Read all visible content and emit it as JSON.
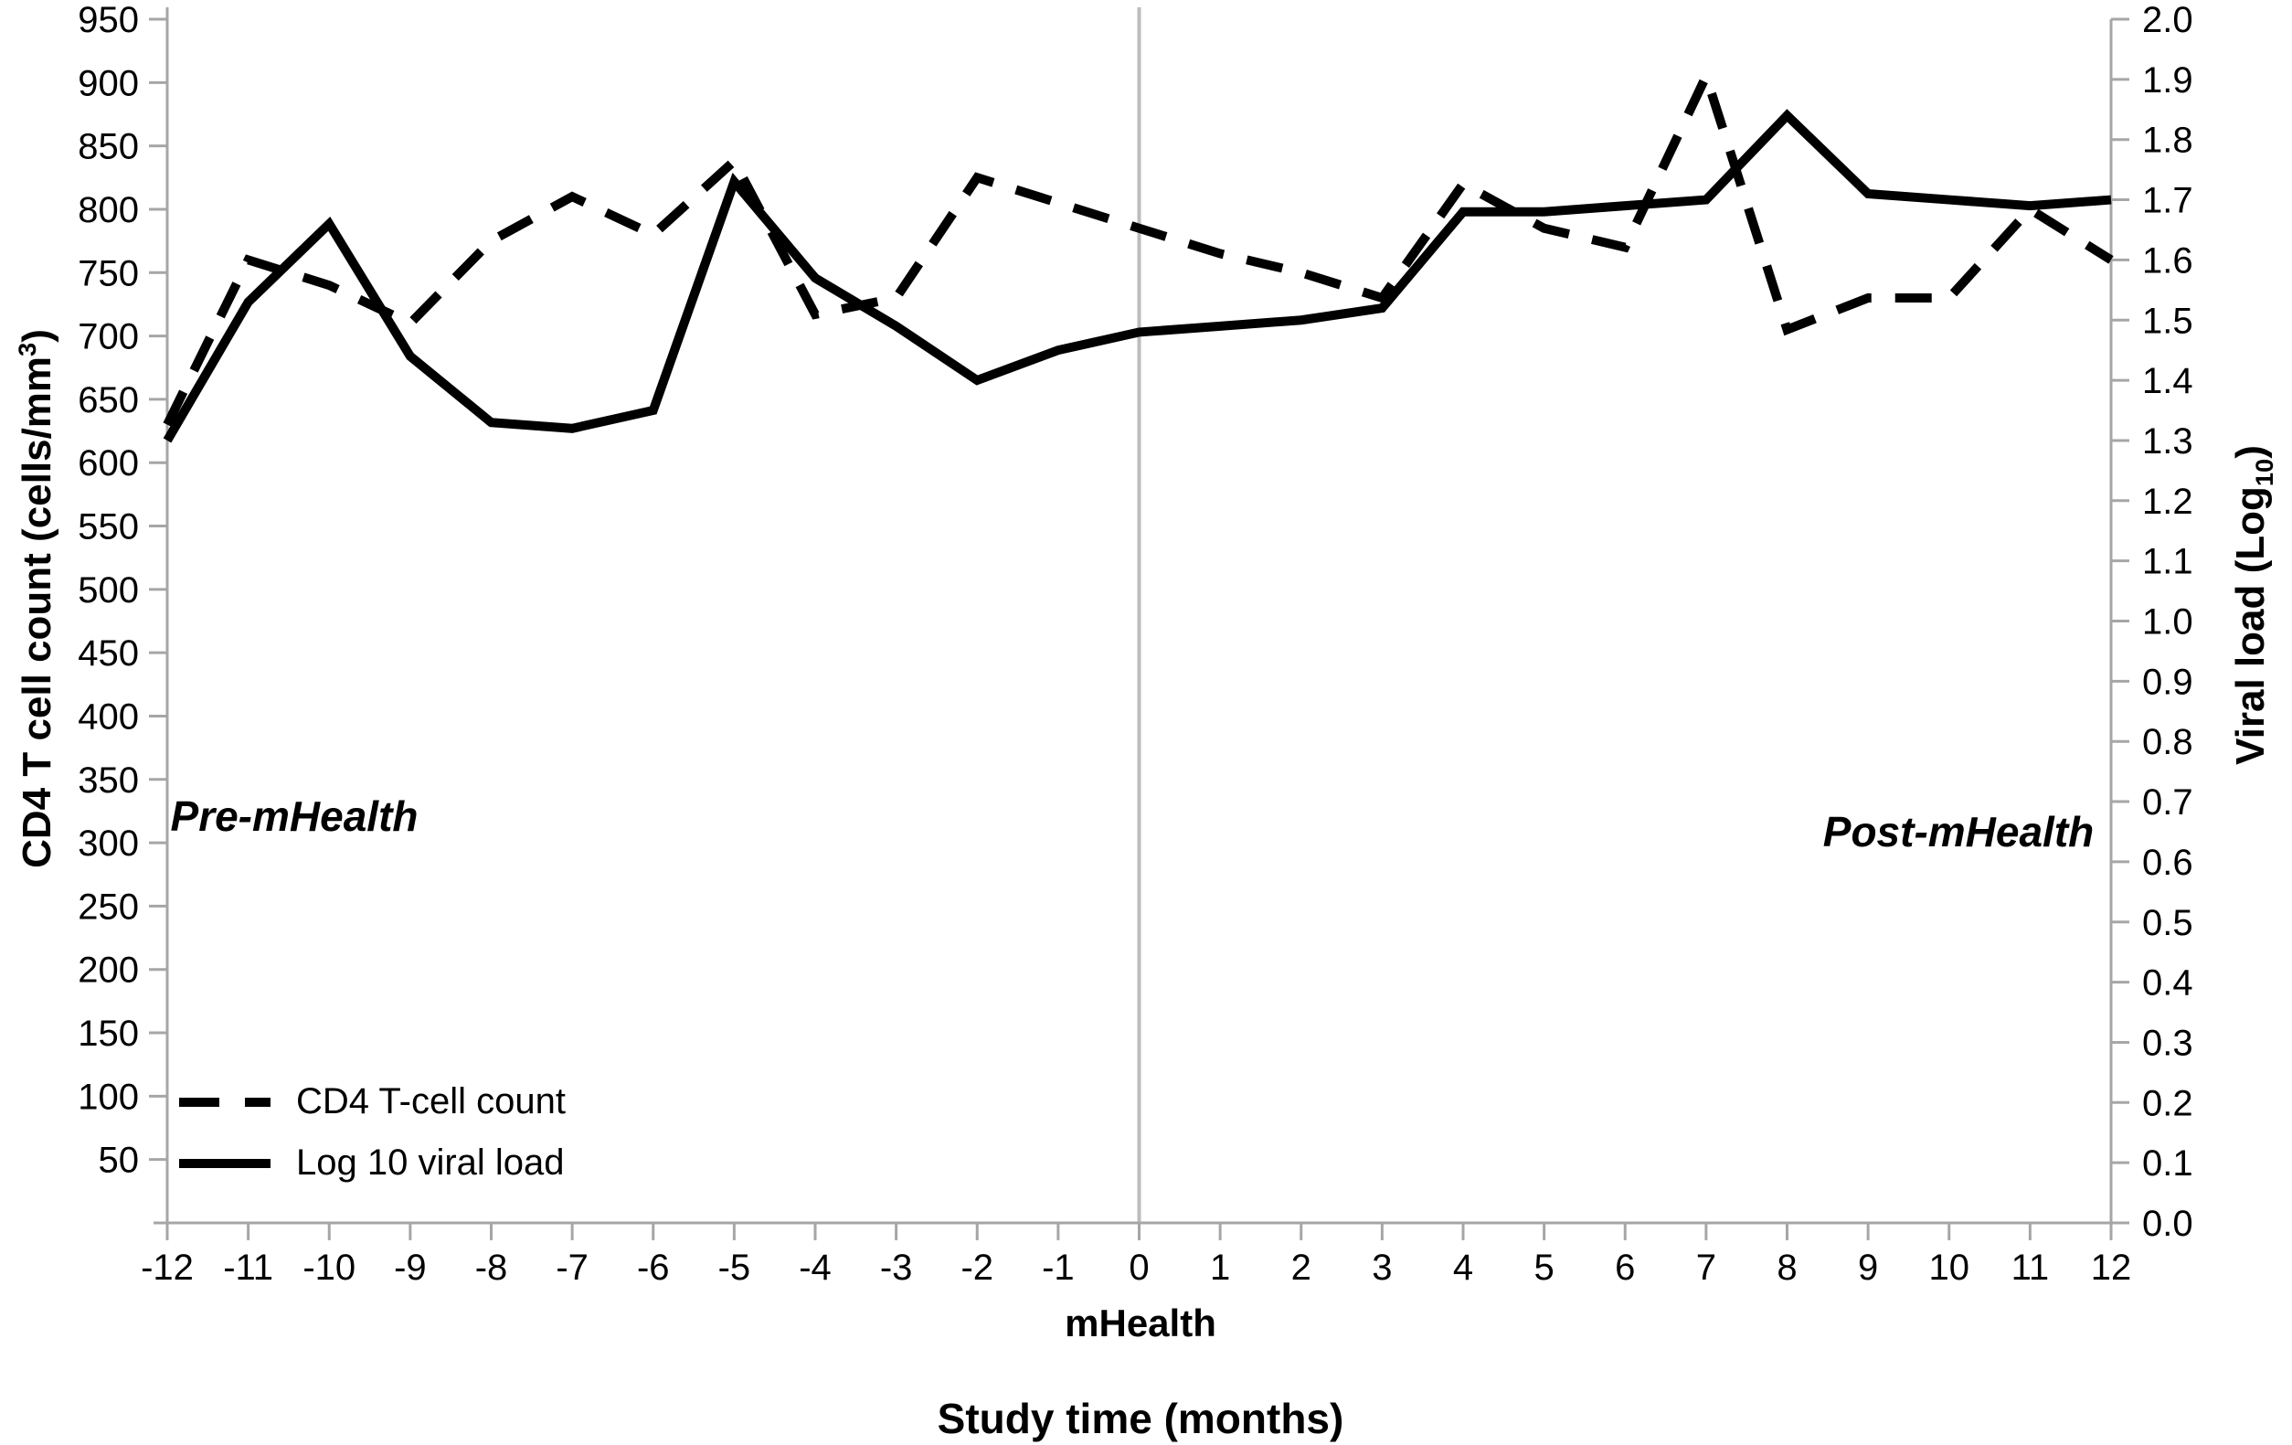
{
  "figure": {
    "background": "#ffffff",
    "axis_color": "#a6a6a6",
    "series_color": "#000000",
    "divider_color": "#bcbcbc"
  },
  "chart_data": {
    "type": "line",
    "title": "",
    "xlabel": "Study time (months)",
    "x_sublabel": "mHealth",
    "ylabel_left": {
      "prefix": "CD4 T cell count (cells/mm",
      "sup": "3",
      "suffix": ")"
    },
    "ylabel_right": {
      "prefix": "Viral load (Log",
      "sub": "10",
      "suffix": ")"
    },
    "annotations": {
      "pre": "Pre-mHealth",
      "post": "Post-mHealth"
    },
    "grid": false,
    "divider_x": 0,
    "legend_position": "inside-bottom-left",
    "x": [
      -12,
      -11,
      -10,
      -9,
      -8,
      -7,
      -6,
      -5,
      -4,
      -3,
      -2,
      -1,
      0,
      1,
      2,
      3,
      4,
      5,
      6,
      7,
      8,
      9,
      10,
      11,
      12
    ],
    "x_tick_labels": [
      "-12",
      "-11",
      "-10",
      "-9",
      "-8",
      "-7",
      "-6",
      "-5",
      "-4",
      "-3",
      "-2",
      "-1",
      "0",
      "1",
      "2",
      "3",
      "4",
      "5",
      "6",
      "7",
      "8",
      "9",
      "10",
      "11",
      "12"
    ],
    "left_axis": {
      "range": [
        0,
        950
      ],
      "ticks": [
        950,
        900,
        850,
        800,
        750,
        700,
        650,
        600,
        550,
        500,
        450,
        400,
        350,
        300,
        250,
        200,
        150,
        100,
        50
      ]
    },
    "right_axis": {
      "range": [
        0,
        2.0
      ],
      "ticks": [
        "2.0",
        "1.9",
        "1.8",
        "1.7",
        "1.6",
        "1.5",
        "1.4",
        "1.3",
        "1.2",
        "1.1",
        "1.0",
        "0.9",
        "0.8",
        "0.7",
        "0.6",
        "0.5",
        "0.4",
        "0.3",
        "0.2",
        "0.1",
        "0.0"
      ]
    },
    "series": [
      {
        "key": "cd4-series-line",
        "name": "CD4 T-cell count",
        "axis": "left",
        "style": "dashed",
        "values": [
          630,
          760,
          740,
          710,
          775,
          810,
          780,
          838,
          717,
          730,
          825,
          805,
          785,
          765,
          750,
          730,
          820,
          785,
          770,
          905,
          705,
          730,
          730,
          800,
          760
        ]
      },
      {
        "key": "viral-load-series-line",
        "name": "Log 10 viral load",
        "axis": "right",
        "style": "solid",
        "values": [
          1.3,
          1.53,
          1.66,
          1.44,
          1.33,
          1.32,
          1.35,
          1.73,
          1.57,
          1.49,
          1.4,
          1.45,
          1.48,
          1.49,
          1.5,
          1.52,
          1.68,
          1.68,
          1.69,
          1.7,
          1.84,
          1.71,
          1.7,
          1.69,
          1.7
        ]
      }
    ]
  }
}
